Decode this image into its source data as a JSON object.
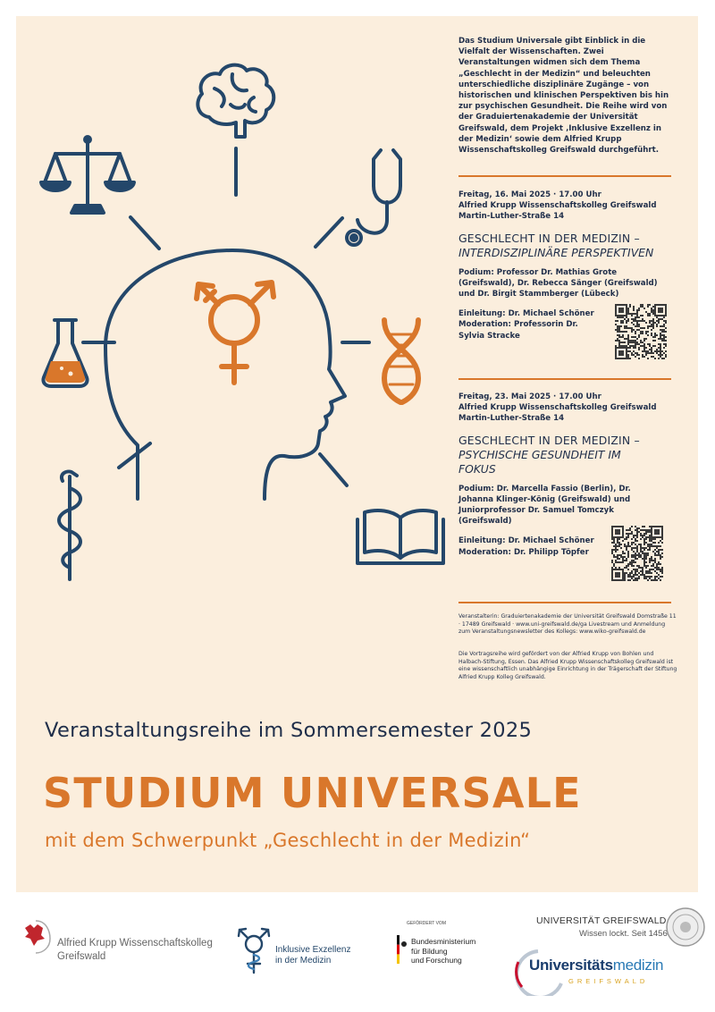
{
  "intro": "Das Studium Universale gibt Einblick in die Vielfalt der Wissenschaften. Zwei Veranstaltungen widmen sich dem Thema „Geschlecht in der Medizin“ und beleuchten unterschiedliche disziplinäre Zugänge – von historischen und klinischen Perspektiven bis hin zur psychischen Gesundheit. Die Reihe wird von der Graduiertenakademie der Universität Greifswald, dem Projekt ‚Inklusive Exzellenz in der Medizin‘ sowie dem Alfried Krupp Wissenschaftskolleg Greifswald durchgeführt.",
  "event1": {
    "date": "Freitag, 16. Mai 2025 · 17.00 Uhr",
    "venue": "Alfried Krupp Wissenschaftskolleg Greifswald",
    "address": "Martin-Luther-Straße 14",
    "title": "GESCHLECHT IN DER MEDIZIN –",
    "subtitle": "INTERDISZIPLINÄRE PERSPEKTIVEN",
    "podium": "Podium: Professor Dr. Mathias Grote (Greifswald), Dr. Rebecca Sänger (Greifswald) und Dr. Birgit Stammberger (Lübeck)",
    "intro_by": "Einleitung: Dr. Michael Schöner",
    "moderation": "Moderation: Professorin Dr. Sylvia Stracke"
  },
  "event2": {
    "date": "Freitag, 23. Mai 2025 · 17.00 Uhr",
    "venue": "Alfried Krupp Wissenschaftskolleg Greifswald",
    "address": "Martin-Luther-Straße 14",
    "title": "GESCHLECHT IN DER MEDIZIN –",
    "subtitle": "PSYCHISCHE GESUNDHEIT IM FOKUS",
    "podium": "Podium: Dr. Marcella Fassio (Berlin), Dr. Johanna Klinger-König (Greifswald) und Juniorprofessor Dr. Samuel Tomczyk (Greifswald)",
    "intro_by": "Einleitung: Dr. Michael Schöner",
    "moderation": "Moderation: Dr. Philipp Töpfer"
  },
  "organizer": "Veranstalterin: Graduiertenakademie der Universität Greifswald Domstraße 11 · 17489 Greifswald · www.uni-greifswald.de/ga Livestream und Anmeldung zum Veranstaltungsnewsletter des Kollegs: www.wiko-greifswald.de",
  "funding": "Die Vortragsreihe wird gefördert von der Alfried Krupp von Bohlen und Halbach-Stiftung, Essen. Das Alfried Krupp Wissenschaftskolleg Greifswald ist eine wissenschaftlich unabhängige Einrichtung in der Trägerschaft der Stiftung Alfried Krupp Kolleg Greifswald.",
  "series": "Veranstaltungsreihe im Sommersemester 2025",
  "headline": "STUDIUM UNIVERSALE",
  "subheadline": "mit dem Schwerpunkt „Geschlecht in der Medizin“",
  "logos": {
    "krupp_line1": "Alfried Krupp Wissenschaftskolleg",
    "krupp_line2": "Greifswald",
    "ie_line1": "Inklusive Exzellenz",
    "ie_line2": "in der Medizin",
    "bmbf_pre": "GEFÖRDERT VOM",
    "bmbf_line1": "Bundesministerium",
    "bmbf_line2": "für Bildung",
    "bmbf_line3": "und Forschung",
    "uni_name": "UNIVERSITÄT GREIFSWALD",
    "uni_claim": "Wissen lockt. Seit 1456",
    "um_a": "Universitäts",
    "um_b": "medizin",
    "um_c": "GREIFSWALD"
  },
  "colors": {
    "navy": "#24476a",
    "orange": "#d9772b",
    "background": "#fbeedd"
  }
}
